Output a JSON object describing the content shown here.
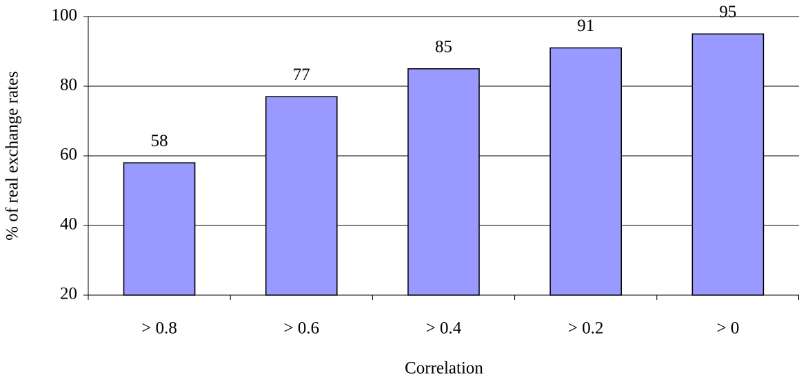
{
  "chart_data": {
    "type": "bar",
    "x_label": "Correlation",
    "y_label": "% of real exchange rates",
    "categories": [
      "> 0.8",
      "> 0.6",
      "> 0.4",
      "> 0.2",
      "> 0"
    ],
    "values": [
      58,
      77,
      85,
      91,
      95
    ],
    "color": "#9999ff",
    "ylim": [
      20,
      100
    ],
    "yticks": [
      20,
      40,
      60,
      80,
      100
    ],
    "grid": true
  }
}
